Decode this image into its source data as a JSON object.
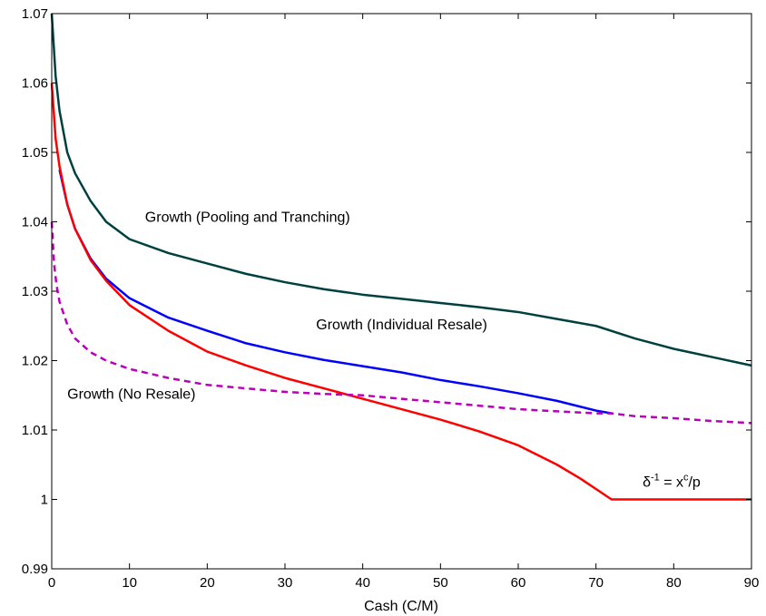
{
  "chart_data": {
    "type": "line",
    "title": "",
    "xlabel": "Cash (C/M)",
    "ylabel": "",
    "xlim": [
      0,
      90
    ],
    "ylim": [
      0.99,
      1.07
    ],
    "xticks": [
      0,
      10,
      20,
      30,
      40,
      50,
      60,
      70,
      80,
      90
    ],
    "xtick_labels": [
      "0",
      "10",
      "20",
      "30",
      "40",
      "50",
      "60",
      "70",
      "80",
      "90"
    ],
    "yticks": [
      0.99,
      1.0,
      1.01,
      1.02,
      1.03,
      1.04,
      1.05,
      1.06,
      1.07
    ],
    "ytick_labels": [
      "0.99",
      "1",
      "1.01",
      "1.02",
      "1.03",
      "1.04",
      "1.05",
      "1.06",
      "1.07"
    ],
    "grid": false,
    "series": [
      {
        "color": "#004040",
        "dash": "solid",
        "x": [
          0,
          0.5,
          1,
          2,
          3,
          5,
          7,
          10,
          15,
          20,
          25,
          30,
          35,
          40,
          45,
          50,
          55,
          60,
          65,
          70,
          75,
          80,
          85,
          90
        ],
        "y": [
          1.07,
          1.061,
          1.056,
          1.05,
          1.047,
          1.043,
          1.04,
          1.0375,
          1.0355,
          1.034,
          1.0325,
          1.0313,
          1.0303,
          1.0295,
          1.0289,
          1.0283,
          1.0277,
          1.027,
          1.026,
          1.025,
          1.0232,
          1.0217,
          1.0205,
          1.0193
        ]
      },
      {
        "color": "#0000ff",
        "dash": "solid",
        "x": [
          1,
          1.5,
          2,
          3,
          5,
          7,
          10,
          15,
          20,
          25,
          30,
          35,
          40,
          45,
          50,
          55,
          60,
          65,
          70,
          72
        ],
        "y": [
          1.0475,
          1.045,
          1.0425,
          1.039,
          1.0347,
          1.0318,
          1.029,
          1.0262,
          1.0243,
          1.0225,
          1.0212,
          1.0201,
          1.0192,
          1.0183,
          1.0172,
          1.0163,
          1.0153,
          1.0142,
          1.0128,
          1.0124
        ]
      },
      {
        "color": "#ff0000",
        "dash": "solid",
        "x": [
          0,
          0.5,
          1,
          2,
          3,
          5,
          7,
          10,
          15,
          20,
          25,
          30,
          35,
          40,
          45,
          50,
          55,
          60,
          65,
          68,
          70,
          72,
          75,
          80,
          85,
          90
        ],
        "y": [
          1.06,
          1.052,
          1.048,
          1.0425,
          1.039,
          1.0345,
          1.0315,
          1.028,
          1.0243,
          1.0213,
          1.0193,
          1.0175,
          1.016,
          1.0145,
          1.013,
          1.0115,
          1.0098,
          1.0078,
          1.005,
          1.003,
          1.0015,
          1.0,
          1.0,
          1.0,
          1.0,
          1.0
        ]
      },
      {
        "color": "#bb00bb",
        "dash": "dashed",
        "x": [
          0,
          0.3,
          0.6,
          1,
          2,
          3,
          5,
          7,
          10,
          15,
          20,
          25,
          30,
          35,
          40,
          45,
          50,
          55,
          60,
          65,
          70,
          72,
          75,
          80,
          85,
          90
        ],
        "y": [
          1.04,
          1.034,
          1.031,
          1.0285,
          1.0252,
          1.0232,
          1.0212,
          1.02,
          1.0188,
          1.0175,
          1.0165,
          1.016,
          1.0155,
          1.0152,
          1.015,
          1.0145,
          1.014,
          1.0135,
          1.013,
          1.0127,
          1.0124,
          1.0124,
          1.012,
          1.0117,
          1.0113,
          1.011
        ]
      }
    ],
    "annotations": [
      {
        "text": "Growth (Pooling and Tranching)",
        "x": 12,
        "y": 1.04
      },
      {
        "text": "Growth (Individual Resale)",
        "x": 34,
        "y": 1.0245
      },
      {
        "text": "Growth (No Resale)",
        "x": 2,
        "y": 1.0145
      }
    ],
    "formula_annotation": {
      "text_delta": "δ",
      "exponent": "-1",
      "text_mid": " = x",
      "superscript_c": "c",
      "text_end": "/p",
      "x": 76,
      "y": 1.0018
    }
  }
}
